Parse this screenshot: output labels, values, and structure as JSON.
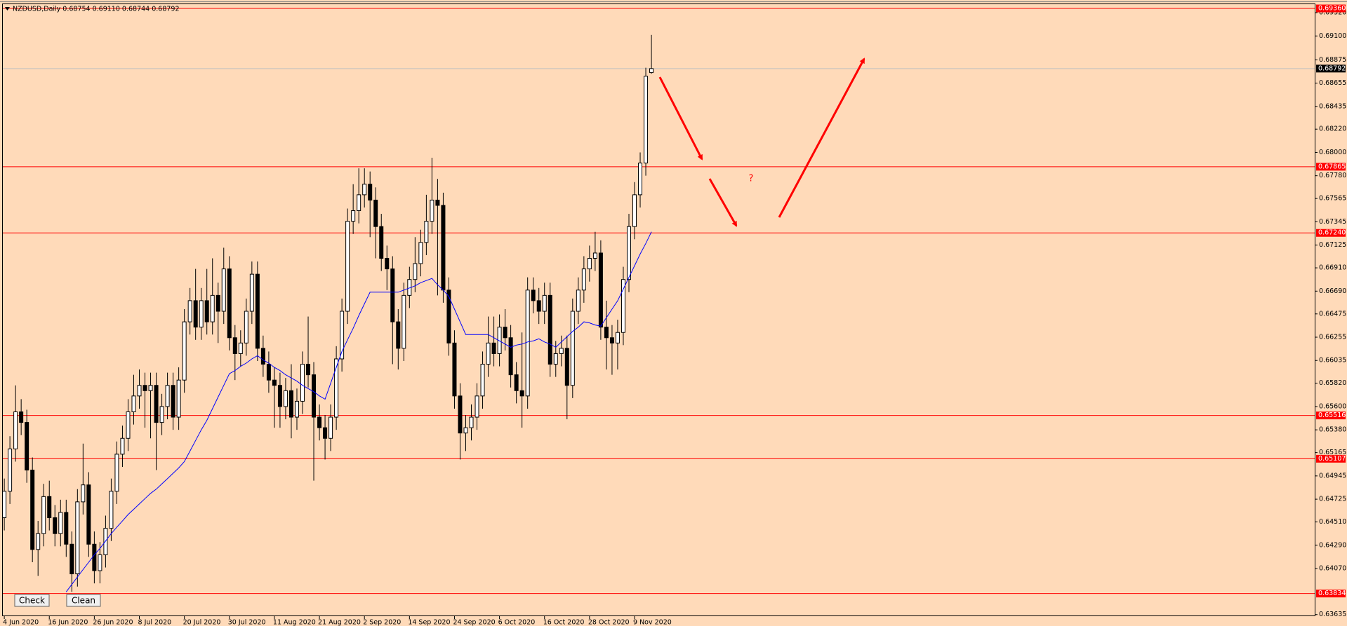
{
  "chart_data": {
    "type": "candlestick",
    "title": "NZDUSD,Daily  0.68754 0.69110 0.68744 0.68792",
    "categories": [
      "4 Jun 2020",
      null,
      null,
      null,
      null,
      null,
      null,
      null,
      "16 Jun 2020",
      null,
      null,
      null,
      null,
      null,
      null,
      null,
      "26 Jun 2020",
      null,
      null,
      null,
      null,
      null,
      null,
      null,
      "8 Jul 2020",
      null,
      null,
      null,
      null,
      null,
      null,
      null,
      "20 Jul 2020",
      null,
      null,
      null,
      null,
      null,
      null,
      null,
      "30 Jul 2020",
      null,
      null,
      null,
      null,
      null,
      null,
      null,
      "11 Aug 2020",
      null,
      null,
      null,
      null,
      null,
      null,
      null,
      "21 Aug 2020",
      null,
      null,
      null,
      null,
      null,
      null,
      null,
      "2 Sep 2020",
      null,
      null,
      null,
      null,
      null,
      null,
      null,
      "14 Sep 2020",
      null,
      null,
      null,
      null,
      null,
      null,
      null,
      "24 Sep 2020",
      null,
      null,
      null,
      null,
      null,
      null,
      null,
      "6 Oct 2020",
      null,
      null,
      null,
      null,
      null,
      null,
      null,
      "16 Oct 2020",
      null,
      null,
      null,
      null,
      null,
      null,
      null,
      "28 Oct 2020",
      null,
      null,
      null,
      null,
      null,
      null,
      null,
      "9 Nov 2020",
      null,
      null,
      null
    ],
    "open": [
      0.6455,
      0.648,
      0.652,
      0.6555,
      0.6545,
      0.65,
      0.6425,
      0.644,
      0.6475,
      0.6455,
      0.644,
      0.646,
      0.643,
      0.6402,
      0.647,
      0.6486,
      0.643,
      0.6405,
      0.642,
      0.6445,
      0.648,
      0.6515,
      0.653,
      0.6555,
      0.657,
      0.658,
      0.6575,
      0.658,
      0.6545,
      0.656,
      0.658,
      0.655,
      0.6585,
      0.664,
      0.666,
      0.6635,
      0.666,
      0.664,
      0.6665,
      0.665,
      0.669,
      0.6625,
      0.661,
      0.662,
      0.665,
      0.6685,
      0.6615,
      0.66,
      0.6585,
      0.658,
      0.656,
      0.6575,
      0.655,
      0.6565,
      0.66,
      0.659,
      0.655,
      0.654,
      0.653,
      0.655,
      0.6605,
      0.665,
      0.6735,
      0.6745,
      0.676,
      0.677,
      0.6755,
      0.673,
      0.67,
      0.669,
      0.664,
      0.6615,
      0.6665,
      0.668,
      0.6695,
      0.6715,
      0.6735,
      0.6755,
      0.675,
      0.667,
      0.662,
      0.657,
      0.6535,
      0.654,
      0.655,
      0.657,
      0.66,
      0.662,
      0.661,
      0.6635,
      0.6625,
      0.659,
      0.6575,
      0.657,
      0.667,
      0.666,
      0.665,
      0.6665,
      0.66,
      0.661,
      0.6615,
      0.658,
      0.665,
      0.667,
      0.669,
      0.67,
      0.6705,
      0.6635,
      0.6625,
      0.662,
      0.663,
      0.668,
      0.673,
      0.676,
      0.679,
      0.68754
    ],
    "high": [
      0.6492,
      0.6532,
      0.658,
      0.6567,
      0.6557,
      0.6512,
      0.6452,
      0.6487,
      0.649,
      0.6467,
      0.6472,
      0.6472,
      0.6442,
      0.6482,
      0.6525,
      0.6498,
      0.6442,
      0.6432,
      0.6457,
      0.6492,
      0.6527,
      0.6542,
      0.6567,
      0.659,
      0.6595,
      0.6592,
      0.6592,
      0.6592,
      0.6572,
      0.6592,
      0.6592,
      0.6597,
      0.6652,
      0.6672,
      0.669,
      0.6672,
      0.669,
      0.67,
      0.6677,
      0.671,
      0.6702,
      0.6637,
      0.6632,
      0.6662,
      0.6697,
      0.6697,
      0.6627,
      0.6612,
      0.6597,
      0.6592,
      0.6587,
      0.66,
      0.6577,
      0.6612,
      0.6645,
      0.6602,
      0.6562,
      0.6552,
      0.6562,
      0.6617,
      0.6662,
      0.6747,
      0.677,
      0.6785,
      0.6785,
      0.6782,
      0.6767,
      0.6742,
      0.6712,
      0.6702,
      0.6652,
      0.6677,
      0.6692,
      0.672,
      0.6727,
      0.676,
      0.6795,
      0.6775,
      0.6762,
      0.6682,
      0.6632,
      0.6582,
      0.6552,
      0.6562,
      0.6582,
      0.6612,
      0.6645,
      0.6645,
      0.6647,
      0.6652,
      0.6637,
      0.6602,
      0.663,
      0.6682,
      0.6682,
      0.6672,
      0.6677,
      0.6677,
      0.6622,
      0.6627,
      0.6627,
      0.6662,
      0.6682,
      0.6702,
      0.6712,
      0.6725,
      0.6717,
      0.666,
      0.6637,
      0.6642,
      0.6692,
      0.6742,
      0.6772,
      0.68,
      0.688,
      0.6911
    ],
    "low": [
      0.6443,
      0.6468,
      0.6508,
      0.6533,
      0.6488,
      0.6413,
      0.64,
      0.6428,
      0.6443,
      0.6428,
      0.6428,
      0.6418,
      0.6385,
      0.639,
      0.6458,
      0.6418,
      0.6393,
      0.6393,
      0.6408,
      0.6433,
      0.6468,
      0.6503,
      0.6518,
      0.6543,
      0.6558,
      0.654,
      0.653,
      0.65,
      0.6533,
      0.6548,
      0.6538,
      0.6538,
      0.6573,
      0.6628,
      0.6623,
      0.6623,
      0.6628,
      0.6628,
      0.662,
      0.6638,
      0.6613,
      0.6585,
      0.6598,
      0.6608,
      0.6638,
      0.6603,
      0.6588,
      0.6573,
      0.654,
      0.654,
      0.6548,
      0.653,
      0.6538,
      0.6553,
      0.6578,
      0.649,
      0.6528,
      0.651,
      0.6518,
      0.6538,
      0.6593,
      0.6638,
      0.6723,
      0.6733,
      0.6748,
      0.672,
      0.67,
      0.6688,
      0.667,
      0.66,
      0.6595,
      0.6603,
      0.6653,
      0.6668,
      0.6683,
      0.6703,
      0.6723,
      0.6665,
      0.6658,
      0.6608,
      0.6558,
      0.651,
      0.6518,
      0.6528,
      0.6538,
      0.6558,
      0.6588,
      0.6598,
      0.6598,
      0.6613,
      0.6578,
      0.6563,
      0.654,
      0.6558,
      0.6648,
      0.6638,
      0.6638,
      0.6588,
      0.6588,
      0.6598,
      0.6548,
      0.6568,
      0.6638,
      0.6658,
      0.6678,
      0.6688,
      0.6623,
      0.6595,
      0.659,
      0.6595,
      0.6618,
      0.6668,
      0.6718,
      0.6748,
      0.6778,
      0.68744
    ],
    "close": [
      0.648,
      0.652,
      0.6555,
      0.6545,
      0.65,
      0.6425,
      0.644,
      0.6475,
      0.6455,
      0.644,
      0.646,
      0.643,
      0.6402,
      0.647,
      0.6486,
      0.643,
      0.6405,
      0.642,
      0.6445,
      0.648,
      0.6515,
      0.653,
      0.6555,
      0.657,
      0.658,
      0.6575,
      0.658,
      0.6545,
      0.656,
      0.658,
      0.655,
      0.6585,
      0.664,
      0.666,
      0.6635,
      0.666,
      0.664,
      0.6665,
      0.665,
      0.669,
      0.6625,
      0.661,
      0.662,
      0.665,
      0.6685,
      0.6615,
      0.66,
      0.6585,
      0.658,
      0.656,
      0.6575,
      0.655,
      0.6565,
      0.66,
      0.659,
      0.655,
      0.654,
      0.653,
      0.655,
      0.6605,
      0.665,
      0.6735,
      0.6745,
      0.676,
      0.677,
      0.6755,
      0.673,
      0.67,
      0.669,
      0.664,
      0.6615,
      0.6665,
      0.668,
      0.6695,
      0.6715,
      0.6735,
      0.6755,
      0.675,
      0.667,
      0.662,
      0.657,
      0.6535,
      0.654,
      0.655,
      0.657,
      0.66,
      0.662,
      0.661,
      0.6635,
      0.6625,
      0.659,
      0.6575,
      0.657,
      0.667,
      0.666,
      0.665,
      0.6665,
      0.66,
      0.661,
      0.6615,
      0.658,
      0.665,
      0.667,
      0.669,
      0.67,
      0.6705,
      0.6635,
      0.6625,
      0.662,
      0.663,
      0.668,
      0.673,
      0.676,
      0.679,
      0.6872,
      0.68792
    ],
    "bull_color": "#ffffff",
    "bear_color": "#000000",
    "ma": {
      "color": "#0000ff",
      "values": [
        null,
        null,
        null,
        null,
        null,
        null,
        null,
        null,
        null,
        null,
        null,
        0.6385,
        0.6392,
        0.6399,
        0.6406,
        0.6413,
        0.642,
        0.6426,
        0.6433,
        0.644,
        0.6446,
        0.6452,
        0.6458,
        0.6463,
        0.6468,
        0.6473,
        0.6478,
        0.6482,
        0.6487,
        0.6492,
        0.6497,
        0.6502,
        0.6508,
        0.6518,
        0.6528,
        0.6538,
        0.6547,
        0.6558,
        0.6569,
        0.658,
        0.6591,
        0.6594,
        0.6598,
        0.6601,
        0.6605,
        0.6608,
        0.6604,
        0.6601,
        0.6597,
        0.6594,
        0.659,
        0.6587,
        0.6584,
        0.658,
        0.6577,
        0.6574,
        0.657,
        0.6567,
        0.6582,
        0.6597,
        0.6612,
        0.6623,
        0.6634,
        0.6646,
        0.6657,
        0.6668,
        0.6668,
        0.6668,
        0.6668,
        0.6668,
        0.6668,
        0.667,
        0.6672,
        0.6674,
        0.6677,
        0.6679,
        0.6681,
        0.6675,
        0.667,
        0.6664,
        0.6652,
        0.664,
        0.6628,
        0.6628,
        0.6628,
        0.6628,
        0.6628,
        0.6625,
        0.6622,
        0.6619,
        0.6616,
        0.6618,
        0.6619,
        0.6621,
        0.6622,
        0.6624,
        0.6621,
        0.6619,
        0.6616,
        0.6621,
        0.6626,
        0.6631,
        0.6635,
        0.664,
        0.6639,
        0.6637,
        0.6636,
        0.6644,
        0.6652,
        0.666,
        0.6671,
        0.6682,
        0.6693,
        0.6704,
        0.6714,
        0.6725
      ]
    },
    "ylim": [
      0.6362,
      0.694
    ],
    "yticks": [
      {
        "value": 0.6932,
        "label": "0.69320"
      },
      {
        "value": 0.691,
        "label": "0.69100"
      },
      0.68875,
      0.68655,
      0.68435,
      {
        "value": 0.6822,
        "label": "0.68220"
      },
      {
        "value": 0.68,
        "label": "0.68000"
      },
      {
        "value": 0.6778,
        "label": "0.67780"
      },
      0.67565,
      0.67345,
      0.67125,
      {
        "value": 0.6691,
        "label": "0.66910"
      },
      {
        "value": 0.6669,
        "label": "0.66690"
      },
      0.66475,
      0.66255,
      0.66035,
      {
        "value": 0.6582,
        "label": "0.65820"
      },
      {
        "value": 0.656,
        "label": "0.65600"
      },
      {
        "value": 0.6538,
        "label": "0.65380"
      },
      0.65165,
      0.64945,
      0.64725,
      {
        "value": 0.6451,
        "label": "0.64510"
      },
      {
        "value": 0.6429,
        "label": "0.64290"
      },
      {
        "value": 0.6407,
        "label": "0.64070"
      },
      0.63635
    ],
    "levels": [
      {
        "value": 0.6936,
        "label": "0.69360"
      },
      0.67865,
      {
        "value": 0.6724,
        "label": "0.67240"
      },
      0.65516,
      0.65107,
      0.63834
    ],
    "level_color": "#ff0000",
    "last_price": 0.68792,
    "annotations": [
      "?"
    ],
    "buttons": [
      "Check",
      "Clean"
    ],
    "grid": false
  }
}
